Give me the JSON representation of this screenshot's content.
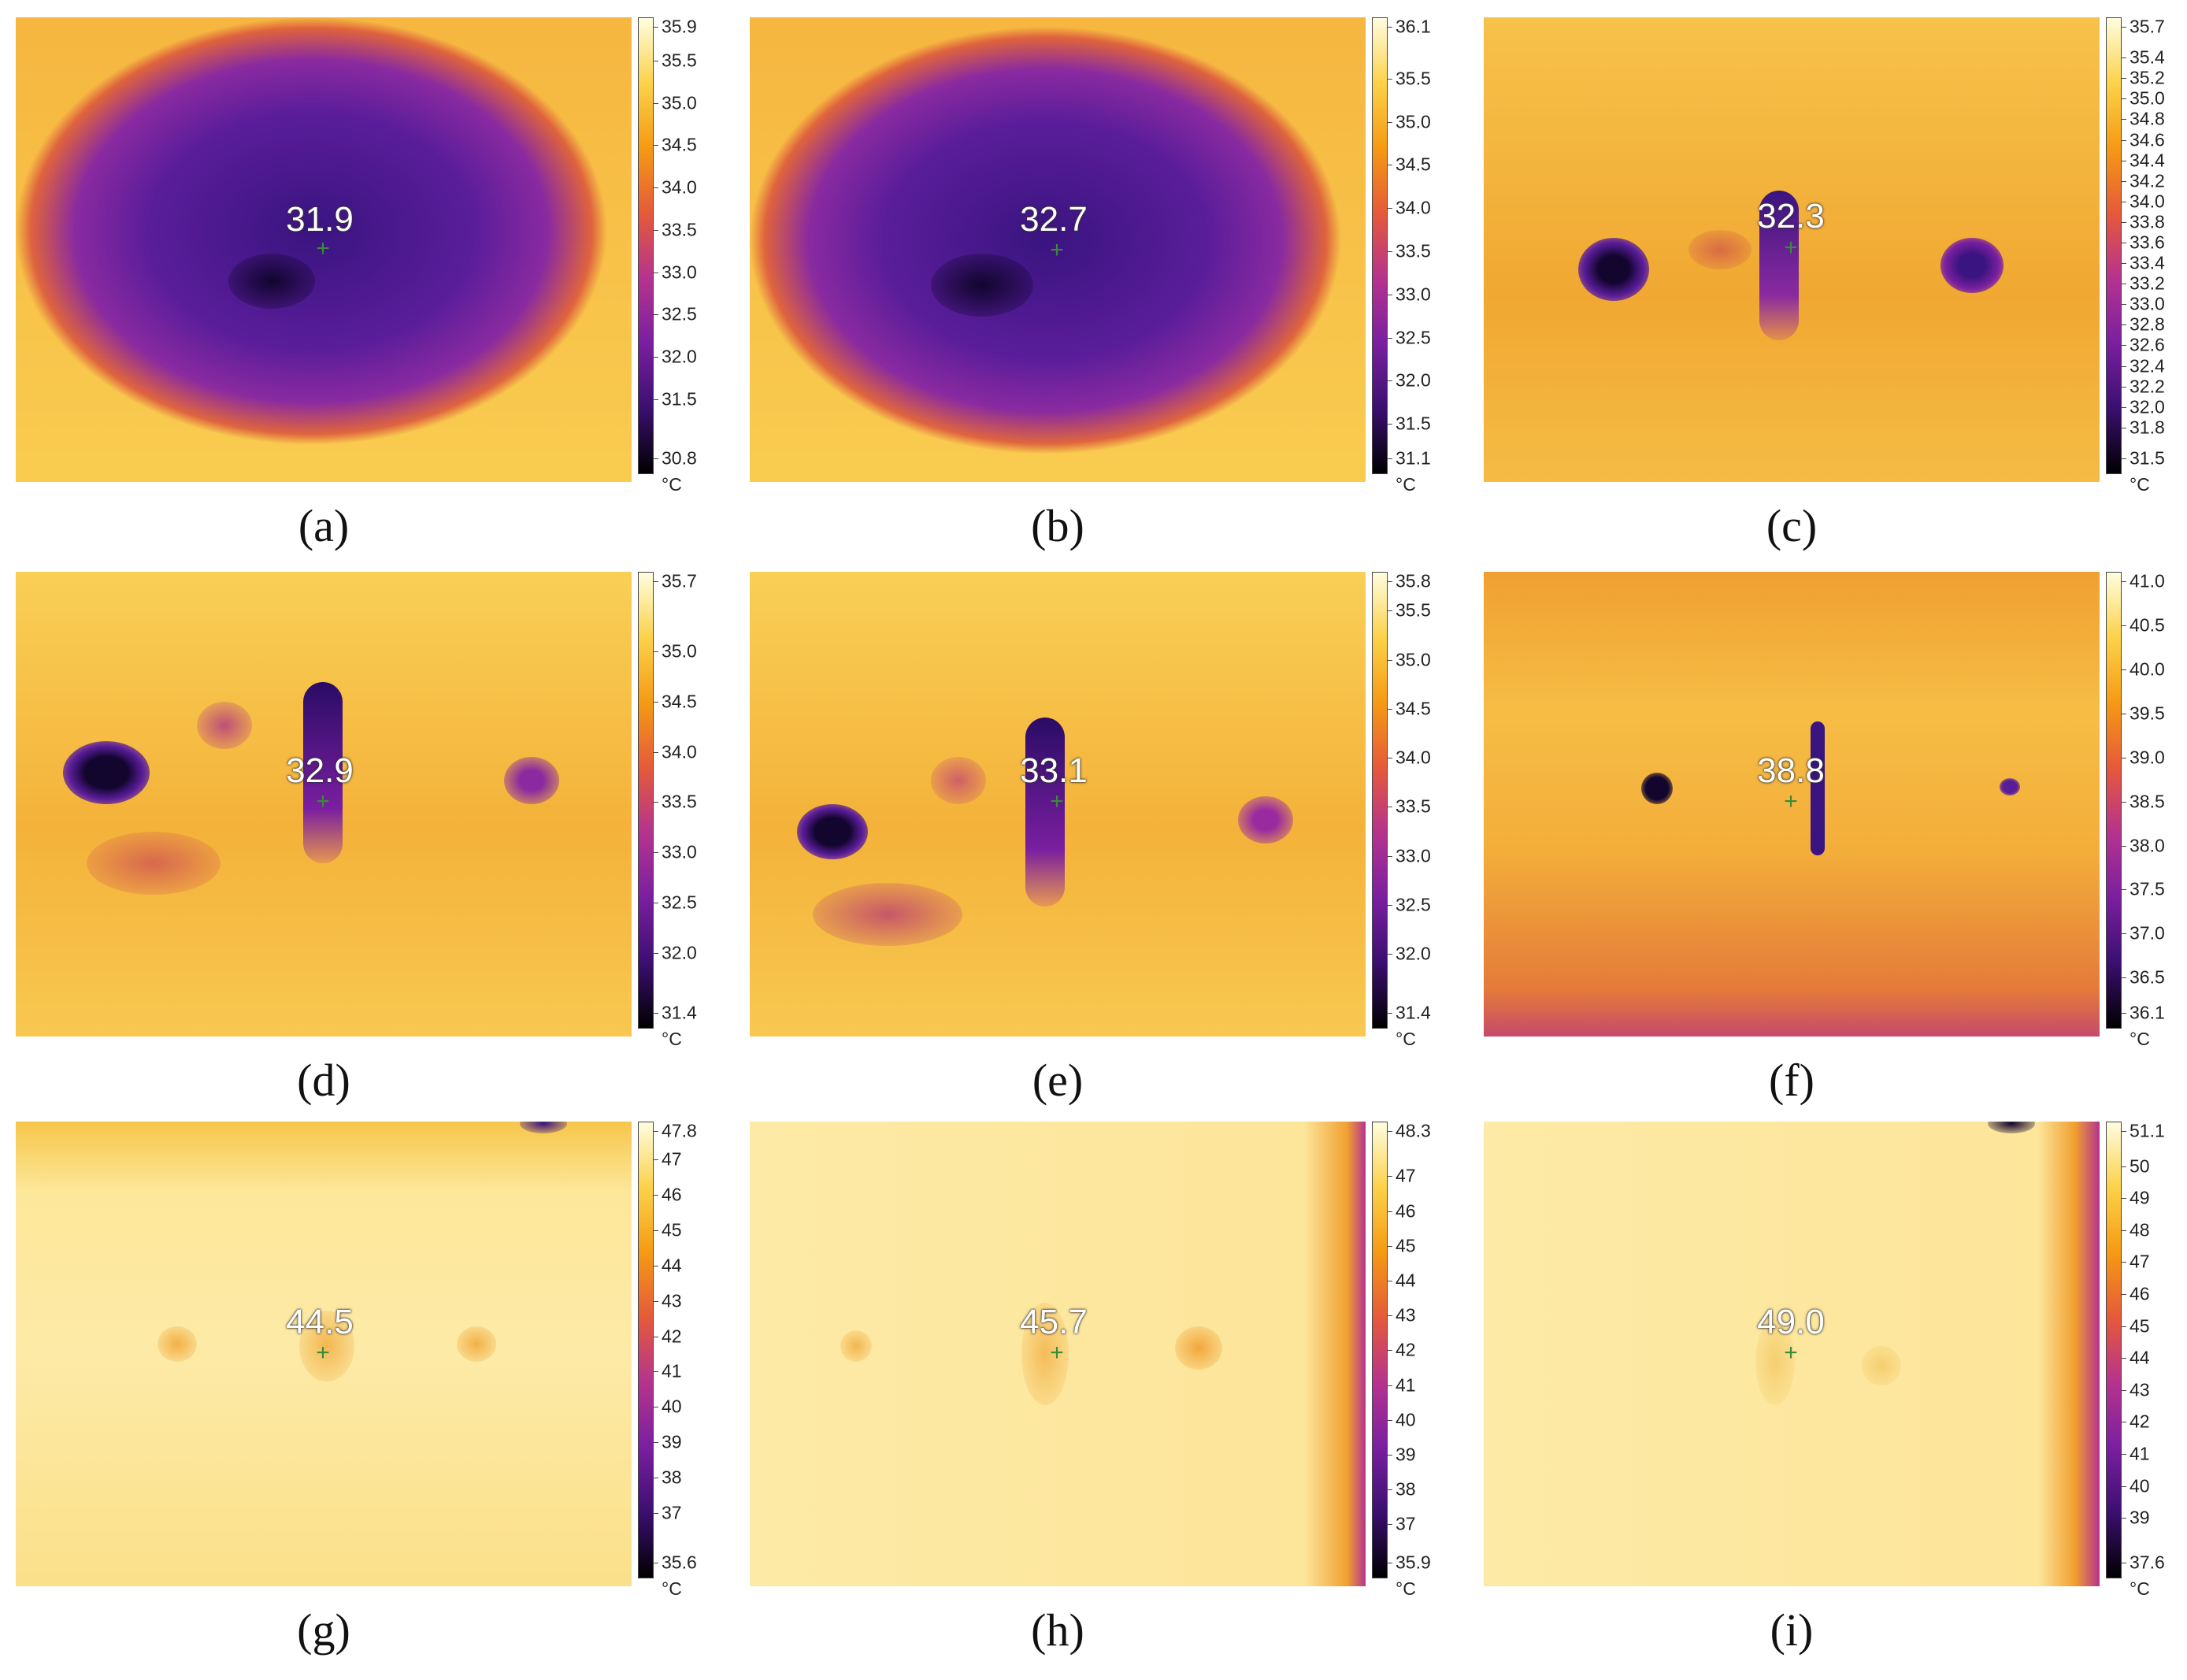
{
  "colormap": [
    "#000000",
    "#3b0f70",
    "#7a1fa0",
    "#b5338e",
    "#e55a3a",
    "#f59a14",
    "#fcd24a",
    "#fffde0"
  ],
  "panels": [
    {
      "caption": "(a)",
      "readout": "31.9",
      "scale_max": 35.9,
      "scale_min": 30.8,
      "ticks": [
        "35.9",
        "35.5",
        "35.0",
        "34.5",
        "34.0",
        "33.5",
        "33.0",
        "32.5",
        "32.0",
        "31.5",
        "30.8"
      ],
      "tick_values": [
        35.9,
        35.5,
        35.0,
        34.5,
        34.0,
        33.5,
        33.0,
        32.5,
        32.0,
        31.5,
        30.8
      ],
      "unit": "°C"
    },
    {
      "caption": "(b)",
      "readout": "32.7",
      "scale_max": 36.1,
      "scale_min": 31.1,
      "ticks": [
        "36.1",
        "35.5",
        "35.0",
        "34.5",
        "34.0",
        "33.5",
        "33.0",
        "32.5",
        "32.0",
        "31.5",
        "31.1"
      ],
      "tick_values": [
        36.1,
        35.5,
        35.0,
        34.5,
        34.0,
        33.5,
        33.0,
        32.5,
        32.0,
        31.5,
        31.1
      ],
      "unit": "°C"
    },
    {
      "caption": "(c)",
      "readout": "32.3",
      "scale_max": 35.7,
      "scale_min": 31.5,
      "ticks": [
        "35.7",
        "35.4",
        "35.2",
        "35.0",
        "34.8",
        "34.6",
        "34.4",
        "34.2",
        "34.0",
        "33.8",
        "33.6",
        "33.4",
        "33.2",
        "33.0",
        "32.8",
        "32.6",
        "32.4",
        "32.2",
        "32.0",
        "31.8",
        "31.5"
      ],
      "tick_values": [
        35.7,
        35.4,
        35.2,
        35.0,
        34.8,
        34.6,
        34.4,
        34.2,
        34.0,
        33.8,
        33.6,
        33.4,
        33.2,
        33.0,
        32.8,
        32.6,
        32.4,
        32.2,
        32.0,
        31.8,
        31.5
      ],
      "unit": "°C"
    },
    {
      "caption": "(d)",
      "readout": "32.9",
      "scale_max": 35.7,
      "scale_min": 31.4,
      "ticks": [
        "35.7",
        "35.0",
        "34.5",
        "34.0",
        "33.5",
        "33.0",
        "32.5",
        "32.0",
        "31.4"
      ],
      "tick_values": [
        35.7,
        35.0,
        34.5,
        34.0,
        33.5,
        33.0,
        32.5,
        32.0,
        31.4
      ],
      "unit": "°C"
    },
    {
      "caption": "(e)",
      "readout": "33.1",
      "scale_max": 35.8,
      "scale_min": 31.4,
      "ticks": [
        "35.8",
        "35.5",
        "35.0",
        "34.5",
        "34.0",
        "33.5",
        "33.0",
        "32.5",
        "32.0",
        "31.4"
      ],
      "tick_values": [
        35.8,
        35.5,
        35.0,
        34.5,
        34.0,
        33.5,
        33.0,
        32.5,
        32.0,
        31.4
      ],
      "unit": "°C"
    },
    {
      "caption": "(f)",
      "readout": "38.8",
      "scale_max": 41.0,
      "scale_min": 36.1,
      "ticks": [
        "41.0",
        "40.5",
        "40.0",
        "39.5",
        "39.0",
        "38.5",
        "38.0",
        "37.5",
        "37.0",
        "36.5",
        "36.1"
      ],
      "tick_values": [
        41.0,
        40.5,
        40.0,
        39.5,
        39.0,
        38.5,
        38.0,
        37.5,
        37.0,
        36.5,
        36.1
      ],
      "unit": "°C"
    },
    {
      "caption": "(g)",
      "readout": "44.5",
      "scale_max": 47.8,
      "scale_min": 35.6,
      "ticks": [
        "47.8",
        "47",
        "46",
        "45",
        "44",
        "43",
        "42",
        "41",
        "40",
        "39",
        "38",
        "37",
        "35.6"
      ],
      "tick_values": [
        47.8,
        47,
        46,
        45,
        44,
        43,
        42,
        41,
        40,
        39,
        38,
        37,
        35.6
      ],
      "unit": "°C"
    },
    {
      "caption": "(h)",
      "readout": "45.7",
      "scale_max": 48.3,
      "scale_min": 35.9,
      "ticks": [
        "48.3",
        "47",
        "46",
        "45",
        "44",
        "43",
        "42",
        "41",
        "40",
        "39",
        "38",
        "37",
        "35.9"
      ],
      "tick_values": [
        48.3,
        47,
        46,
        45,
        44,
        43,
        42,
        41,
        40,
        39,
        38,
        37,
        35.9
      ],
      "unit": "°C"
    },
    {
      "caption": "(i)",
      "readout": "49.0",
      "scale_max": 51.1,
      "scale_min": 37.6,
      "ticks": [
        "51.1",
        "50",
        "49",
        "48",
        "47",
        "46",
        "45",
        "44",
        "43",
        "42",
        "41",
        "40",
        "39",
        "37.6"
      ],
      "tick_values": [
        51.1,
        50,
        49,
        48,
        47,
        46,
        45,
        44,
        43,
        42,
        41,
        40,
        39,
        37.6
      ],
      "unit": "°C"
    }
  ]
}
